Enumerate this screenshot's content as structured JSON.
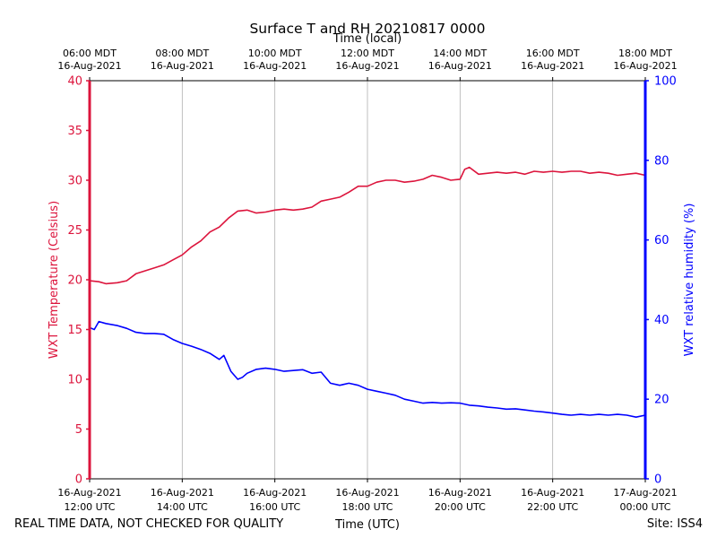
{
  "chart_data": {
    "type": "line",
    "title": "Surface T and RH 20210817 0000",
    "top_axis_label": "Time (local)",
    "xlabel": "Time (UTC)",
    "ylabel_left": "WXT Temperature (Celsius)",
    "ylabel_right": "WXT relative humidity (%)",
    "xlim_hours_utc": [
      12,
      24
    ],
    "ylim_left": [
      0,
      40
    ],
    "ylim_right": [
      0,
      100
    ],
    "yticks_left": [
      "0",
      "5",
      "10",
      "15",
      "20",
      "25",
      "30",
      "35",
      "40"
    ],
    "yticks_right": [
      "0",
      "20",
      "40",
      "60",
      "80",
      "100"
    ],
    "xticks_bottom": [
      {
        "hour": 12,
        "line1": "16-Aug-2021",
        "line2": "12:00 UTC"
      },
      {
        "hour": 14,
        "line1": "16-Aug-2021",
        "line2": "14:00 UTC"
      },
      {
        "hour": 16,
        "line1": "16-Aug-2021",
        "line2": "16:00 UTC"
      },
      {
        "hour": 18,
        "line1": "16-Aug-2021",
        "line2": "18:00 UTC"
      },
      {
        "hour": 20,
        "line1": "16-Aug-2021",
        "line2": "20:00 UTC"
      },
      {
        "hour": 22,
        "line1": "16-Aug-2021",
        "line2": "22:00 UTC"
      },
      {
        "hour": 24,
        "line1": "17-Aug-2021",
        "line2": "00:00 UTC"
      }
    ],
    "xticks_top": [
      {
        "hour": 12,
        "line1": "06:00 MDT",
        "line2": "16-Aug-2021"
      },
      {
        "hour": 14,
        "line1": "08:00 MDT",
        "line2": "16-Aug-2021"
      },
      {
        "hour": 16,
        "line1": "10:00 MDT",
        "line2": "16-Aug-2021"
      },
      {
        "hour": 18,
        "line1": "12:00 MDT",
        "line2": "16-Aug-2021"
      },
      {
        "hour": 20,
        "line1": "14:00 MDT",
        "line2": "16-Aug-2021"
      },
      {
        "hour": 22,
        "line1": "16:00 MDT",
        "line2": "16-Aug-2021"
      },
      {
        "hour": 24,
        "line1": "18:00 MDT",
        "line2": "16-Aug-2021"
      }
    ],
    "grid_x": true,
    "series": [
      {
        "name": "WXT Temperature (Celsius)",
        "axis": "left",
        "color": "#dc143c",
        "x_hours_utc": [
          12.0,
          12.2,
          12.35,
          12.6,
          12.8,
          13.0,
          13.2,
          13.4,
          13.6,
          13.8,
          14.0,
          14.2,
          14.4,
          14.6,
          14.8,
          15.0,
          15.2,
          15.4,
          15.6,
          15.8,
          16.0,
          16.2,
          16.4,
          16.6,
          16.8,
          17.0,
          17.2,
          17.4,
          17.6,
          17.8,
          18.0,
          18.2,
          18.4,
          18.6,
          18.8,
          19.0,
          19.2,
          19.4,
          19.6,
          19.8,
          20.0,
          20.1,
          20.2,
          20.4,
          20.6,
          20.8,
          21.0,
          21.2,
          21.4,
          21.6,
          21.8,
          22.0,
          22.2,
          22.4,
          22.6,
          22.8,
          23.0,
          23.2,
          23.4,
          23.6,
          23.8,
          24.0
        ],
        "values": [
          19.9,
          19.8,
          19.6,
          19.7,
          19.9,
          20.6,
          20.9,
          21.2,
          21.5,
          22.0,
          22.5,
          23.3,
          23.9,
          24.8,
          25.3,
          26.2,
          26.9,
          27.0,
          26.7,
          26.8,
          27.0,
          27.1,
          27.0,
          27.1,
          27.3,
          27.9,
          28.1,
          28.3,
          28.8,
          29.4,
          29.4,
          29.8,
          30.0,
          30.0,
          29.8,
          29.9,
          30.1,
          30.5,
          30.3,
          30.0,
          30.1,
          31.1,
          31.3,
          30.6,
          30.7,
          30.8,
          30.7,
          30.8,
          30.6,
          30.9,
          30.8,
          30.9,
          30.8,
          30.9,
          30.9,
          30.7,
          30.8,
          30.7,
          30.5,
          30.6,
          30.7,
          30.5
        ]
      },
      {
        "name": "WXT relative humidity (%)",
        "axis": "right",
        "color": "#0000ff",
        "x_hours_utc": [
          12.0,
          12.1,
          12.2,
          12.35,
          12.6,
          12.8,
          13.0,
          13.2,
          13.4,
          13.6,
          13.8,
          14.0,
          14.2,
          14.4,
          14.6,
          14.8,
          14.9,
          15.05,
          15.2,
          15.3,
          15.4,
          15.6,
          15.8,
          16.0,
          16.2,
          16.4,
          16.6,
          16.8,
          17.0,
          17.2,
          17.4,
          17.6,
          17.8,
          18.0,
          18.2,
          18.4,
          18.6,
          18.8,
          19.0,
          19.2,
          19.4,
          19.6,
          19.8,
          20.0,
          20.2,
          20.4,
          20.6,
          20.8,
          21.0,
          21.2,
          21.4,
          21.6,
          21.8,
          22.0,
          22.2,
          22.4,
          22.6,
          22.8,
          23.0,
          23.2,
          23.4,
          23.6,
          23.8,
          24.0
        ],
        "values": [
          38.0,
          37.5,
          39.5,
          39.0,
          38.5,
          37.8,
          36.8,
          36.5,
          36.5,
          36.3,
          35.0,
          34.0,
          33.3,
          32.5,
          31.5,
          30.0,
          31.0,
          27.0,
          25.0,
          25.5,
          26.5,
          27.5,
          27.8,
          27.5,
          27.0,
          27.2,
          27.4,
          26.5,
          26.8,
          24.0,
          23.5,
          24.0,
          23.5,
          22.5,
          22.0,
          21.5,
          21.0,
          20.0,
          19.5,
          19.0,
          19.2,
          19.0,
          19.1,
          19.0,
          18.5,
          18.3,
          18.0,
          17.8,
          17.5,
          17.6,
          17.3,
          17.0,
          16.8,
          16.5,
          16.2,
          16.0,
          16.2,
          16.0,
          16.2,
          16.0,
          16.2,
          16.0,
          15.5,
          16.0
        ]
      }
    ]
  },
  "footer": {
    "left": "REAL TIME DATA, NOT CHECKED FOR QUALITY",
    "right": "Site: ISS4"
  },
  "colors": {
    "temperature": "#dc143c",
    "humidity": "#0000ff",
    "grid": "#b0b0b0"
  }
}
